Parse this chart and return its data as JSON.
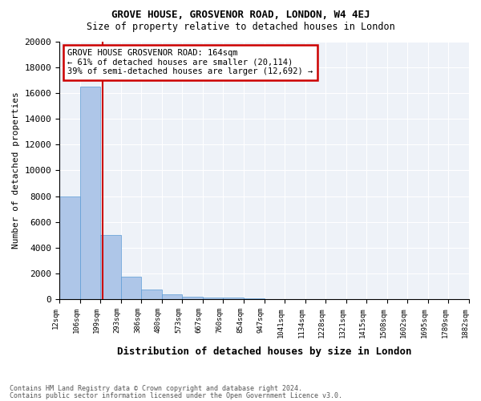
{
  "title": "GROVE HOUSE, GROSVENOR ROAD, LONDON, W4 4EJ",
  "subtitle": "Size of property relative to detached houses in London",
  "xlabel": "Distribution of detached houses by size in London",
  "ylabel": "Number of detached properties",
  "footnote1": "Contains HM Land Registry data © Crown copyright and database right 2024.",
  "footnote2": "Contains public sector information licensed under the Open Government Licence v3.0.",
  "annotation_line1": "GROVE HOUSE GROSVENOR ROAD: 164sqm",
  "annotation_line2": "← 61% of detached houses are smaller (20,114)",
  "annotation_line3": "39% of semi-detached houses are larger (12,692) →",
  "bin_labels": [
    "12sqm",
    "106sqm",
    "199sqm",
    "293sqm",
    "386sqm",
    "480sqm",
    "573sqm",
    "667sqm",
    "760sqm",
    "854sqm",
    "947sqm",
    "1041sqm",
    "1134sqm",
    "1228sqm",
    "1321sqm",
    "1415sqm",
    "1508sqm",
    "1602sqm",
    "1695sqm",
    "1789sqm",
    "1882sqm"
  ],
  "bar_values": [
    8000,
    16500,
    5000,
    1750,
    800,
    380,
    200,
    150,
    150,
    100,
    0,
    0,
    0,
    0,
    0,
    0,
    0,
    0,
    0,
    0
  ],
  "bar_color": "#aec6e8",
  "bar_edge_color": "#5b9bd5",
  "red_line_x": 1.62,
  "ylim": [
    0,
    20000
  ],
  "yticks": [
    0,
    2000,
    4000,
    6000,
    8000,
    10000,
    12000,
    14000,
    16000,
    18000,
    20000
  ],
  "background_color": "#eef2f8",
  "annotation_box_color": "#ffffff",
  "annotation_box_edge": "#cc0000",
  "red_line_color": "#cc0000"
}
